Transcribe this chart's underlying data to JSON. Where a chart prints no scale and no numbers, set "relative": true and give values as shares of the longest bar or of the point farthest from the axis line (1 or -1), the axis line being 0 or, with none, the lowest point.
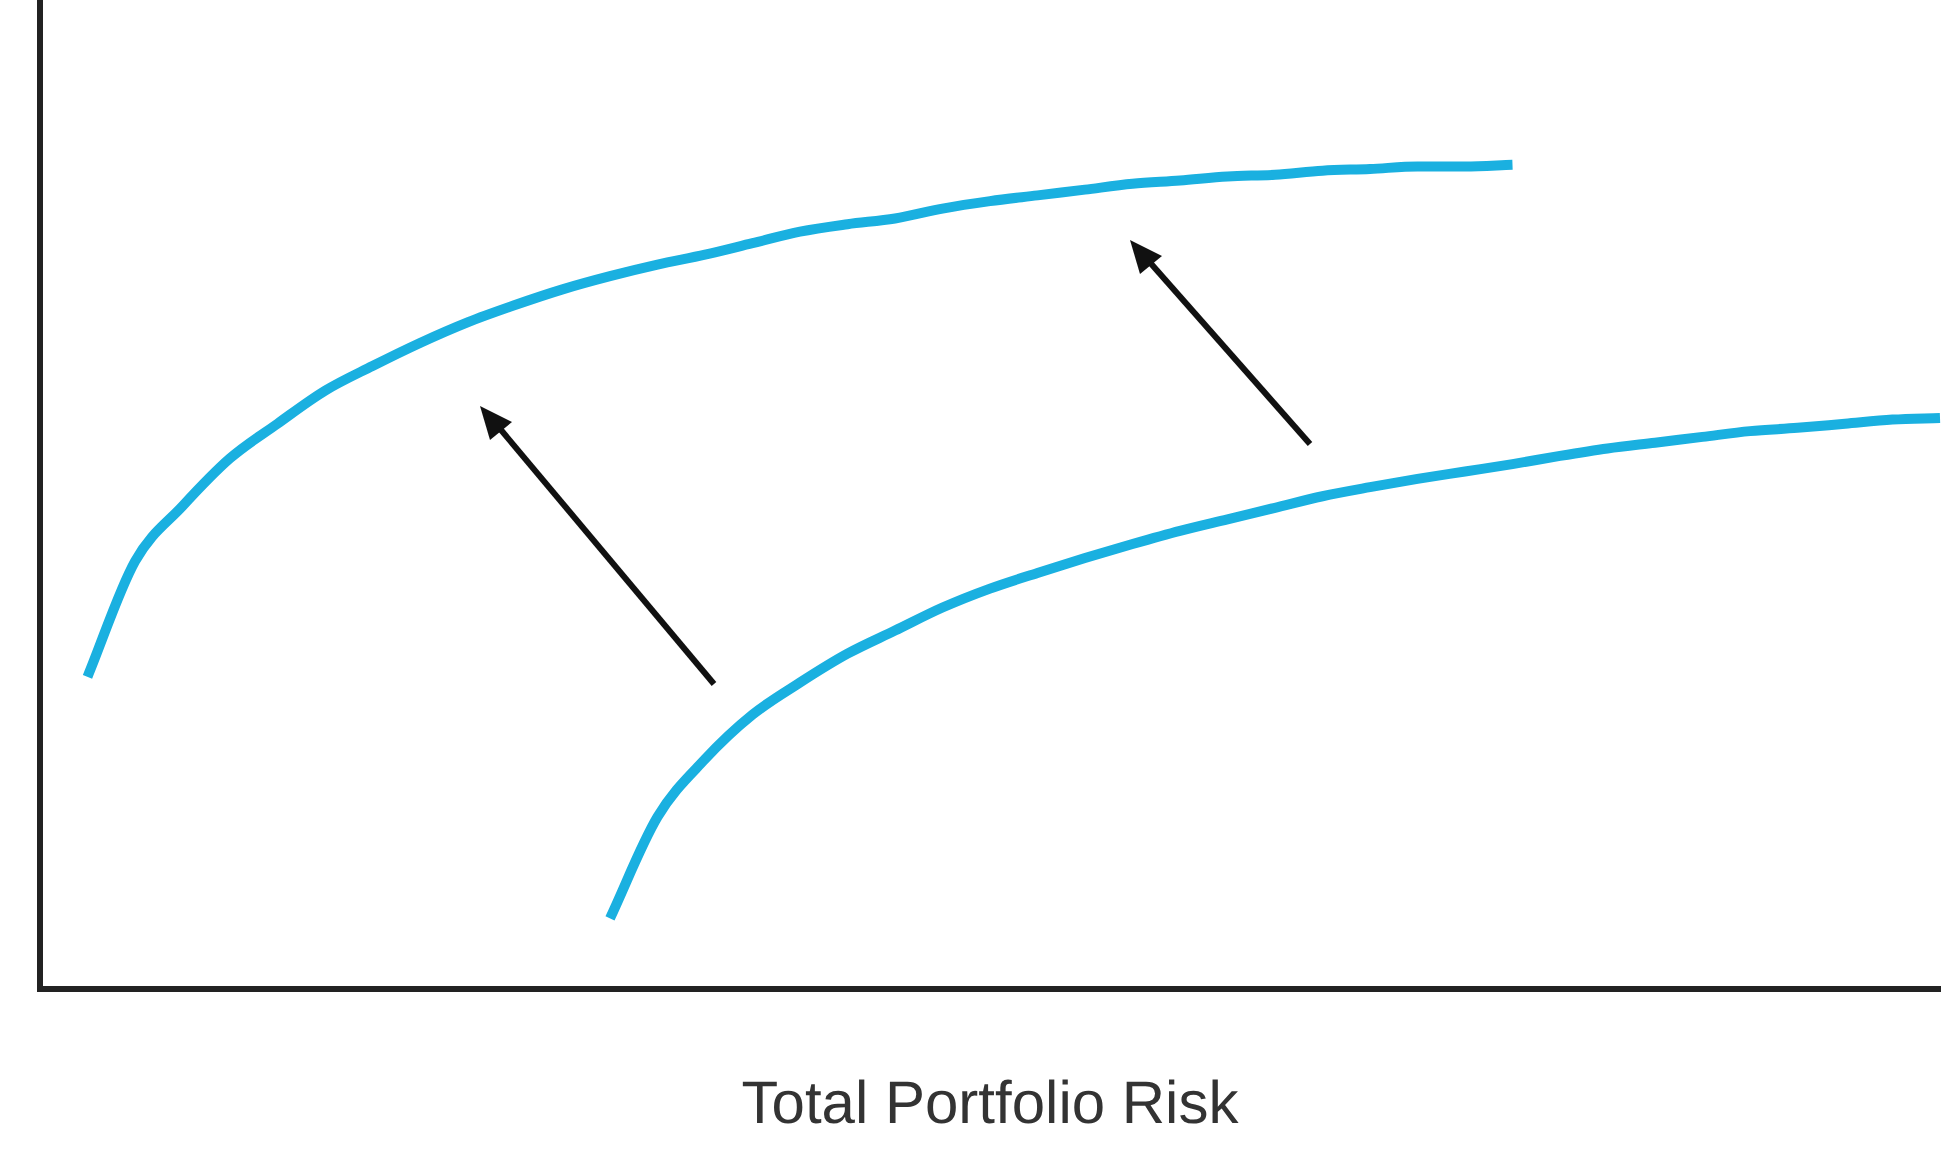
{
  "chart_data": {
    "type": "line",
    "relative": true,
    "xlabel": "Total Portfolio Risk",
    "legend": false,
    "grid": false,
    "marker": "none",
    "line_style": "solid",
    "categories": [
      null,
      null,
      null,
      null,
      null,
      null,
      null,
      null,
      null,
      null,
      null,
      null,
      null,
      null,
      null,
      null,
      null,
      null,
      null,
      null,
      null,
      null,
      null,
      null,
      null,
      null,
      null,
      null,
      null,
      null,
      null,
      null,
      null,
      null,
      null,
      null,
      null,
      null,
      null,
      null,
      null
    ],
    "series": [
      {
        "color": "#1ab0e0",
        "values": [
          null,
          0.379,
          0.519,
          0.586,
          0.644,
          0.686,
          0.726,
          0.756,
          0.784,
          0.809,
          0.83,
          0.849,
          0.865,
          0.879,
          0.891,
          0.905,
          0.919,
          0.928,
          0.935,
          0.947,
          0.956,
          0.963,
          0.97,
          0.977,
          0.981,
          0.986,
          0.988,
          0.993,
          0.995,
          0.998,
          0.998,
          1,
          null,
          null,
          null,
          null,
          null,
          null,
          null,
          null,
          null
        ]
      },
      {
        "color": "#1ab0e0",
        "values": [
          null,
          null,
          null,
          null,
          null,
          null,
          null,
          null,
          null,
          null,
          null,
          null,
          0.086,
          0.209,
          0.279,
          0.333,
          0.372,
          0.407,
          0.435,
          0.463,
          0.486,
          0.505,
          0.523,
          0.54,
          0.556,
          0.57,
          0.584,
          0.598,
          0.609,
          0.619,
          0.628,
          0.637,
          0.647,
          0.656,
          0.663,
          0.67,
          0.677,
          0.681,
          0.686,
          0.691,
          0.693
        ]
      }
    ]
  }
}
